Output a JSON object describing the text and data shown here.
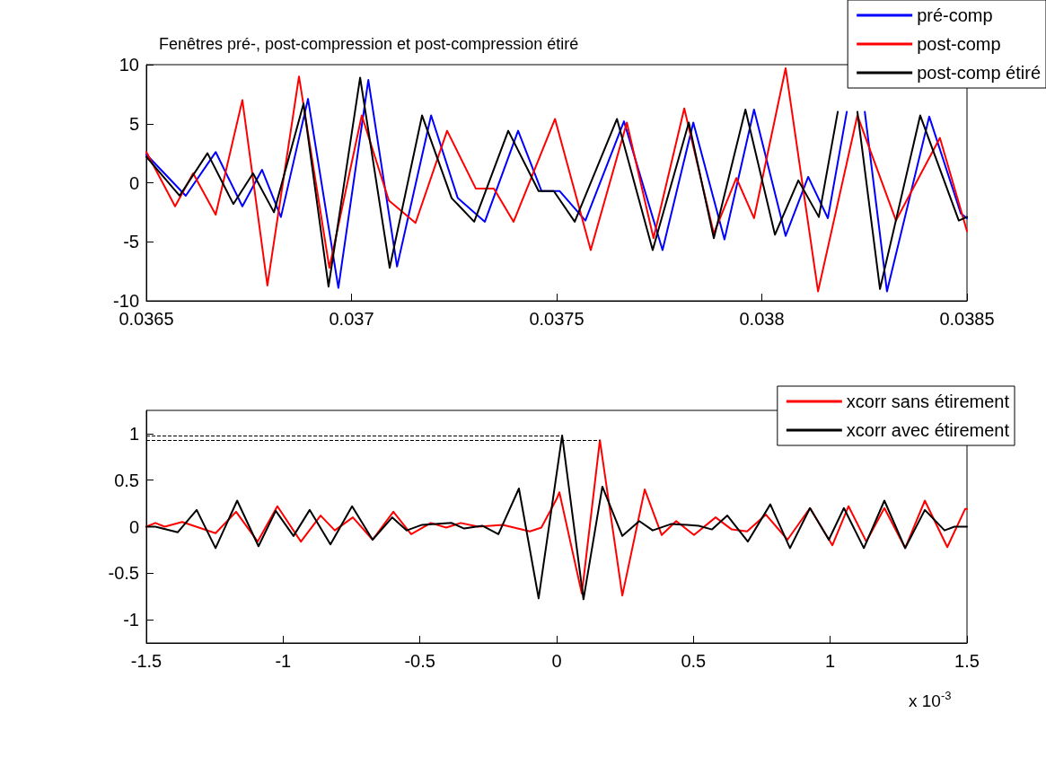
{
  "chart_data": [
    {
      "type": "line",
      "title": "Fenêtres pré-, post-compression et post-compression étiré",
      "xlim": [
        0.0365,
        0.0385
      ],
      "xticks": [
        0.0365,
        0.037,
        0.0375,
        0.038,
        0.0385
      ],
      "ylim": [
        -10,
        10
      ],
      "yticks": [
        -10,
        -5,
        0,
        5,
        10
      ],
      "grid": false,
      "legend": "top right",
      "line_style": "solid",
      "series": [
        {
          "name": "pré-comp",
          "color": "#0000ff",
          "x": [
            0.0365,
            0.036596,
            0.036669,
            0.036734,
            0.036782,
            0.036828,
            0.036894,
            0.036968,
            0.037041,
            0.037111,
            0.037194,
            0.037259,
            0.037325,
            0.037406,
            0.037463,
            0.037507,
            0.03757,
            0.037664,
            0.037758,
            0.037833,
            0.037909,
            0.037981,
            0.038058,
            0.038113,
            0.038161,
            0.038207,
            0.038229,
            0.038251,
            0.038305,
            0.038408,
            0.038485,
            0.0385
          ],
          "values": [
            2.4,
            -1.1,
            2.6,
            -2.0,
            1.1,
            -2.9,
            7.1,
            -8.9,
            8.7,
            -7.1,
            5.7,
            -1.3,
            -3.3,
            4.4,
            -0.7,
            -0.7,
            -3.2,
            5.2,
            -5.7,
            5.1,
            -4.8,
            6.2,
            -4.5,
            0.5,
            -3.0,
            6.0,
            null,
            6.0,
            -9.2,
            5.6,
            -2.6,
            -3.0
          ]
        },
        {
          "name": "post-comp",
          "color": "#ff0000",
          "x": [
            0.0365,
            0.03657,
            0.036614,
            0.036669,
            0.036734,
            0.036795,
            0.036872,
            0.036946,
            0.037025,
            0.037091,
            0.037156,
            0.037233,
            0.037303,
            0.037347,
            0.037395,
            0.037496,
            0.037583,
            0.037671,
            0.037736,
            0.037811,
            0.037883,
            0.037938,
            0.037981,
            0.038058,
            0.038137,
            0.038233,
            0.038327,
            0.038434,
            0.0385
          ],
          "values": [
            2.6,
            -2.0,
            0.8,
            -2.7,
            7.0,
            -8.7,
            9.0,
            -7.2,
            5.7,
            -1.5,
            -3.4,
            4.4,
            -0.5,
            -0.5,
            -3.3,
            5.4,
            -5.7,
            5.1,
            -4.7,
            6.3,
            -4.3,
            0.4,
            -3.0,
            9.7,
            -9.2,
            5.7,
            -3.2,
            3.8,
            -4.1
          ]
        },
        {
          "name": "post-comp étiré",
          "color": "#000000",
          "x": [
            0.0365,
            0.036581,
            0.036649,
            0.036712,
            0.03676,
            0.036811,
            0.036883,
            0.036944,
            0.037021,
            0.037093,
            0.037172,
            0.037244,
            0.037299,
            0.037382,
            0.037456,
            0.037493,
            0.037544,
            0.037647,
            0.037734,
            0.037822,
            0.037883,
            0.03796,
            0.038032,
            0.038089,
            0.038139,
            0.038185,
            0.03821,
            0.038233,
            0.038288,
            0.038386,
            0.03848,
            0.0385
          ],
          "values": [
            2.2,
            -1.1,
            2.5,
            -1.8,
            0.8,
            -2.5,
            6.7,
            -8.8,
            8.9,
            -7.2,
            5.7,
            -1.3,
            -3.3,
            4.4,
            -0.7,
            -0.7,
            -3.3,
            5.4,
            -5.7,
            5.1,
            -4.7,
            6.2,
            -4.4,
            0.2,
            -2.9,
            6.0,
            null,
            6.0,
            -9.0,
            5.7,
            -3.2,
            -2.9
          ]
        }
      ]
    },
    {
      "type": "line",
      "xlim": [
        -1.5,
        1.5
      ],
      "xticks": [
        -1.5,
        -1,
        -0.5,
        0,
        0.5,
        1,
        1.5
      ],
      "ylim": [
        -1.25,
        1.25
      ],
      "yticks": [
        -1,
        -0.5,
        0,
        0.5,
        1
      ],
      "grid": false,
      "legend": "top right",
      "line_style": "solid",
      "annotations": [
        "x 10$^{-3}$"
      ],
      "ref_lines": [
        {
          "axis": "y",
          "value": 0.98,
          "color": "#000000",
          "line_style": "dashed"
        },
        {
          "axis": "y",
          "value": 0.93,
          "color": "#000000",
          "line_style": "dashed"
        }
      ],
      "series": [
        {
          "name": "xcorr sans étirement",
          "color": "#ff0000",
          "x": [
            -1.5,
            -1.467,
            -1.433,
            -1.369,
            -1.247,
            -1.172,
            -1.093,
            -1.021,
            -0.935,
            -0.863,
            -0.811,
            -0.745,
            -0.673,
            -0.597,
            -0.532,
            -0.46,
            -0.404,
            -0.351,
            -0.286,
            -0.197,
            -0.098,
            -0.056,
            0.0,
            0.01,
            0.092,
            0.158,
            0.24,
            0.322,
            0.384,
            0.437,
            0.502,
            0.581,
            0.64,
            0.696,
            0.765,
            0.844,
            0.926,
            1.008,
            1.067,
            1.132,
            1.198,
            1.274,
            1.346,
            1.428,
            1.493,
            1.5
          ],
          "values": [
            0,
            0.04,
            0,
            0.05,
            -0.07,
            0.16,
            -0.16,
            0.22,
            -0.16,
            0.12,
            -0.04,
            0.1,
            -0.14,
            0.16,
            -0.08,
            0.04,
            -0.01,
            0.04,
            0,
            0.02,
            -0.05,
            -0.01,
            0.3,
            0.37,
            -0.72,
            0.93,
            -0.74,
            0.4,
            -0.09,
            0.06,
            -0.09,
            0.1,
            -0.03,
            -0.05,
            0.13,
            -0.14,
            0.2,
            -0.2,
            0.22,
            -0.16,
            0.2,
            -0.23,
            0.28,
            -0.22,
            0.19,
            0.19
          ]
        },
        {
          "name": "xcorr avec étirement",
          "color": "#000000",
          "x": [
            -1.5,
            -1.467,
            -1.385,
            -1.316,
            -1.247,
            -1.168,
            -1.09,
            -1.027,
            -0.962,
            -0.903,
            -0.827,
            -0.748,
            -0.673,
            -0.601,
            -0.548,
            -0.492,
            -0.384,
            -0.338,
            -0.272,
            -0.213,
            -0.138,
            -0.066,
            0.02,
            0.098,
            0.167,
            0.24,
            0.302,
            0.351,
            0.42,
            0.519,
            0.568,
            0.624,
            0.699,
            0.781,
            0.853,
            0.926,
            0.995,
            1.05,
            1.123,
            1.198,
            1.274,
            1.346,
            1.418,
            1.454,
            1.5
          ],
          "values": [
            0,
            0,
            -0.06,
            0.18,
            -0.23,
            0.28,
            -0.21,
            0.17,
            -0.1,
            0.18,
            -0.19,
            0.22,
            -0.14,
            0.1,
            -0.04,
            0.02,
            0.04,
            -0.02,
            0.01,
            -0.08,
            0.41,
            -0.77,
            0.98,
            -0.78,
            0.43,
            -0.1,
            0.06,
            -0.04,
            0.03,
            0.01,
            -0.03,
            0.12,
            -0.16,
            0.24,
            -0.23,
            0.2,
            -0.14,
            0.2,
            -0.23,
            0.28,
            -0.23,
            0.18,
            -0.04,
            0,
            0
          ]
        }
      ]
    }
  ]
}
